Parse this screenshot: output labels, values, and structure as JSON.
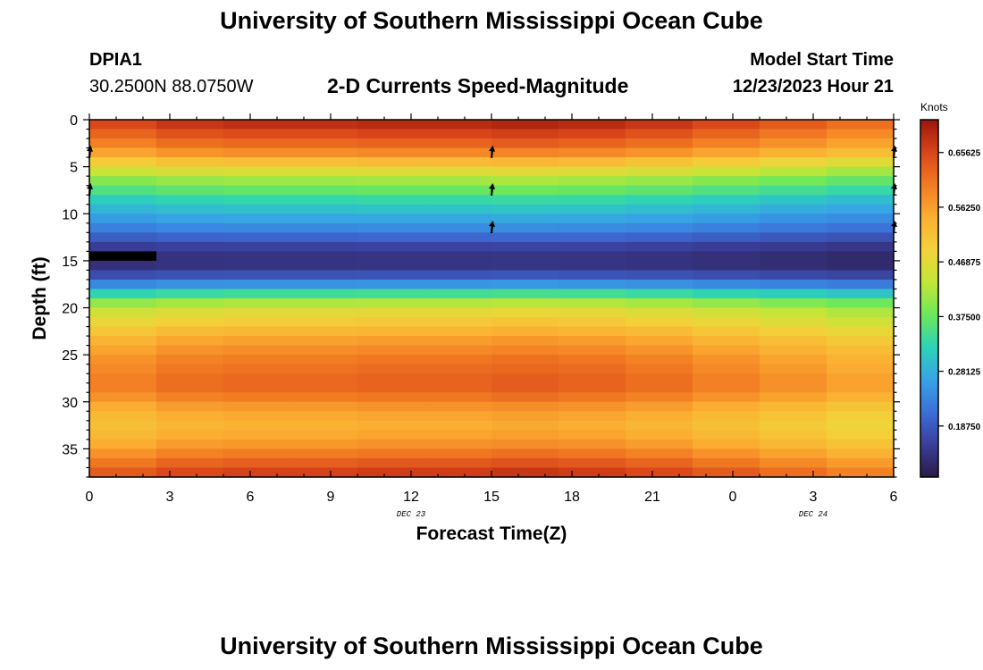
{
  "header": {
    "title": "University of Southern Mississippi Ocean Cube",
    "station_id": "DPIA1",
    "coordinates": "30.2500N  88.0750W",
    "subtitle": "2-D Currents Speed-Magnitude",
    "model_start_label": "Model Start Time",
    "model_start_value": "12/23/2023 Hour 21"
  },
  "footer": {
    "title": "University of Southern Mississippi Ocean Cube"
  },
  "chart_data": {
    "type": "heatmap",
    "title": "2-D Currents Speed-Magnitude",
    "xlabel": "Forecast Time(Z)",
    "ylabel": "Depth (ft)",
    "x_tick_labels": [
      "0",
      "3",
      "6",
      "9",
      "12",
      "15",
      "18",
      "21",
      "0",
      "3",
      "6"
    ],
    "date_labels": [
      {
        "text": "DEC 23",
        "at_tick": 4
      },
      {
        "text": "DEC 24",
        "at_tick": 9
      }
    ],
    "xlim_hours": [
      0,
      30
    ],
    "ylim_ft": [
      0,
      38
    ],
    "y_ticks": [
      0,
      5,
      10,
      15,
      20,
      25,
      30,
      35
    ],
    "colorbar": {
      "label": "Knots",
      "min": 0.1,
      "max": 0.7125,
      "ticks": [
        "0.18750",
        "0.28125",
        "0.37500",
        "0.46875",
        "0.56250",
        "0.65625"
      ],
      "colors": [
        "#2a1a45",
        "#3a3e9a",
        "#3c6fd8",
        "#37a3e6",
        "#2cd3b8",
        "#6de85a",
        "#c3e637",
        "#f2d23a",
        "#fbae32",
        "#f27b22",
        "#d9451a",
        "#9a160c"
      ]
    },
    "time_columns_hours": [
      0,
      2.5,
      5,
      7.5,
      10,
      12.5,
      15,
      17.5,
      20,
      22.5,
      25,
      27.5
    ],
    "depth_rows_ft": [
      0,
      1,
      2,
      3,
      4,
      5,
      6,
      7,
      8,
      9,
      10,
      11,
      12,
      13,
      14,
      15,
      16,
      17,
      18,
      19,
      20,
      21,
      22,
      23,
      24,
      25,
      26,
      27,
      28,
      29,
      30,
      31,
      32,
      33,
      34,
      35,
      36,
      37
    ],
    "speed_profile_knots": [
      0.68,
      0.65,
      0.62,
      0.58,
      0.52,
      0.46,
      0.41,
      0.37,
      0.33,
      0.3,
      0.27,
      0.24,
      0.2,
      0.16,
      0.14,
      0.14,
      0.18,
      0.25,
      0.34,
      0.42,
      0.47,
      0.5,
      0.53,
      0.56,
      0.58,
      0.6,
      0.61,
      0.62,
      0.62,
      0.6,
      0.57,
      0.55,
      0.54,
      0.55,
      0.57,
      0.6,
      0.63,
      0.66
    ],
    "time_factor": [
      0.96,
      0.99,
      1.0,
      1.0,
      1.01,
      1.01,
      1.02,
      1.01,
      0.99,
      0.96,
      0.93,
      0.9
    ],
    "missing_cell": {
      "time_hours": 0,
      "depth_ft": 14
    },
    "vectors": [
      {
        "time_hours": 0,
        "depth_ft": 3.5
      },
      {
        "time_hours": 0,
        "depth_ft": 7.5
      },
      {
        "time_hours": 15,
        "depth_ft": 3.5
      },
      {
        "time_hours": 15,
        "depth_ft": 7.5
      },
      {
        "time_hours": 15,
        "depth_ft": 11.5
      },
      {
        "time_hours": 30,
        "depth_ft": 3.5
      },
      {
        "time_hours": 30,
        "depth_ft": 7.5
      },
      {
        "time_hours": 30,
        "depth_ft": 11.5
      }
    ]
  }
}
